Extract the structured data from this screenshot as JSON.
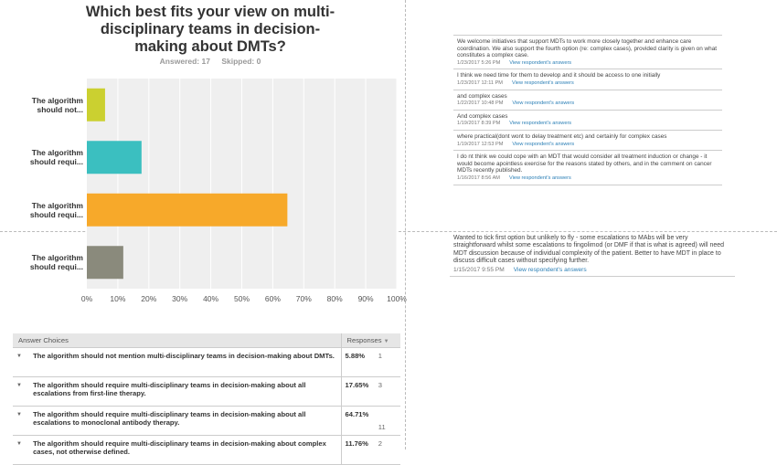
{
  "survey": {
    "title": "Which best fits your view on multi-disciplinary teams in decision-making about DMTs?",
    "answered_label": "Answered: 17",
    "skipped_label": "Skipped: 0"
  },
  "chart_data": {
    "type": "bar",
    "orientation": "horizontal",
    "title": "Which best fits your view on multi-disciplinary teams in decision-making about DMTs?",
    "categories": [
      "The algorithm should not...",
      "The algorithm should requi...",
      "The algorithm should requi...",
      "The algorithm should requi..."
    ],
    "category_label_lines": [
      [
        "The algorithm",
        "should not..."
      ],
      [
        "The algorithm",
        "should requi..."
      ],
      [
        "The algorithm",
        "should requi..."
      ],
      [
        "The algorithm",
        "should requi..."
      ]
    ],
    "values": [
      5.88,
      17.65,
      64.71,
      11.76
    ],
    "bar_colors": [
      "#cbd030",
      "#3bbfc0",
      "#f7a92a",
      "#8a8a7c"
    ],
    "xlim": [
      0,
      100
    ],
    "xticks": [
      "0%",
      "10%",
      "20%",
      "30%",
      "40%",
      "50%",
      "60%",
      "70%",
      "80%",
      "90%",
      "100%"
    ],
    "xlabel": "",
    "ylabel": "",
    "grid": true
  },
  "table": {
    "headers": {
      "choice": "Answer Choices",
      "responses": "Responses"
    },
    "rows": [
      {
        "choice": "The algorithm should not mention multi-disciplinary teams in decision-making about DMTs.",
        "percent": "5.88%",
        "count": "1"
      },
      {
        "choice": "The algorithm should require multi-disciplinary teams in decision-making about all escalations from first-line therapy.",
        "percent": "17.65%",
        "count": "3"
      },
      {
        "choice": "The algorithm should require multi-disciplinary teams in decision-making about all escalations to monoclonal antibody therapy.",
        "percent": "64.71%",
        "count": "11"
      },
      {
        "choice": "The algorithm should require multi-disciplinary teams in decision-making about complex cases, not otherwise defined.",
        "percent": "11.76%",
        "count": "2"
      }
    ]
  },
  "comments_top": [
    {
      "text": "We welcome initiatives that support MDTs to work more closely together and enhance care coordination. We also support the fourth option (re: complex cases), provided clarity is given on what constitutes a complex case.",
      "date": "1/23/2017 5:26 PM",
      "link": "View respondent's answers"
    },
    {
      "text": "I think we need time for them to develop and it should be access to one initially",
      "date": "1/23/2017 12:11 PM",
      "link": "View respondent's answers"
    },
    {
      "text": "and complex cases",
      "date": "1/22/2017 10:48 PM",
      "link": "View respondent's answers"
    },
    {
      "text": "And complex cases",
      "date": "1/19/2017 8:39 PM",
      "link": "View respondent's answers"
    },
    {
      "text": "where practical(dont wont to delay treatment etc) and certainly for complex cases",
      "date": "1/19/2017 12:53 PM",
      "link": "View respondent's answers"
    },
    {
      "text": "I do nt think we could cope with an MDT that would consider all treatment induction or change - it would become apointless exercise for the reasons stated by others, and in the comment on cancer MDTs recently published.",
      "date": "1/16/2017 8:56 AM",
      "link": "View respondent's answers"
    }
  ],
  "comments_bottom": [
    {
      "text": "Wanted to tick first option but unlikely to fly - some escalations to MAbs will be very straightforward whilst some escalations to fingolimod (or DMF if that is what is agreed) will need MDT discussion because of individual complexity of the patient. Better to have MDT in place to discuss difficult cases without specifying further.",
      "date": "1/15/2017 9:55 PM",
      "link": "View respondent's answers"
    }
  ]
}
